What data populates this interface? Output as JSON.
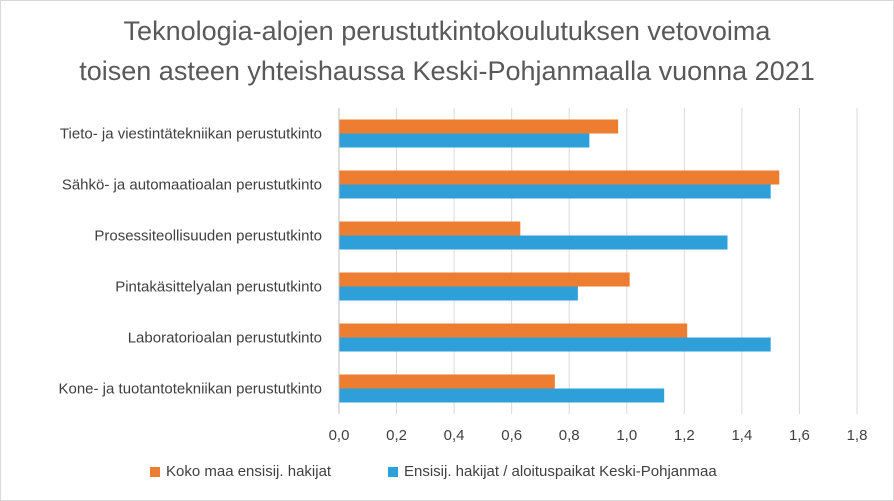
{
  "chart_data": {
    "type": "bar",
    "orientation": "horizontal",
    "title_lines": [
      "Teknologia-alojen perustutkintokoulutuksen vetovoima",
      "toisen asteen yhteishaussa Keski-Pohjanmaalla vuonna 2021"
    ],
    "categories": [
      "Tieto- ja viestintätekniikan perustutkinto",
      "Sähkö- ja automaatioalan perustutkinto",
      "Prosessiteollisuuden perustutkinto",
      "Pintakäsittelyalan perustutkinto",
      "Laboratorioalan perustutkinto",
      "Kone- ja tuotantotekniikan perustutkinto"
    ],
    "series": [
      {
        "name": "Koko maa ensisij. hakijat",
        "color": "#ed7d31",
        "values": [
          0.97,
          1.53,
          0.63,
          1.01,
          1.21,
          0.75
        ]
      },
      {
        "name": "Ensisij. hakijat / aloituspaikat Keski-Pohjanmaa",
        "color": "#2e9fd8",
        "values": [
          0.87,
          1.5,
          1.35,
          0.83,
          1.5,
          1.13
        ]
      }
    ],
    "xlim": [
      0,
      1.8
    ],
    "xticks": [
      "0,0",
      "0,2",
      "0,4",
      "0,6",
      "0,8",
      "1,0",
      "1,2",
      "1,4",
      "1,6",
      "1,8"
    ],
    "xtick_values": [
      0,
      0.2,
      0.4,
      0.6,
      0.8,
      1.0,
      1.2,
      1.4,
      1.6,
      1.8
    ],
    "gridlines": true,
    "legend_position": "bottom"
  }
}
